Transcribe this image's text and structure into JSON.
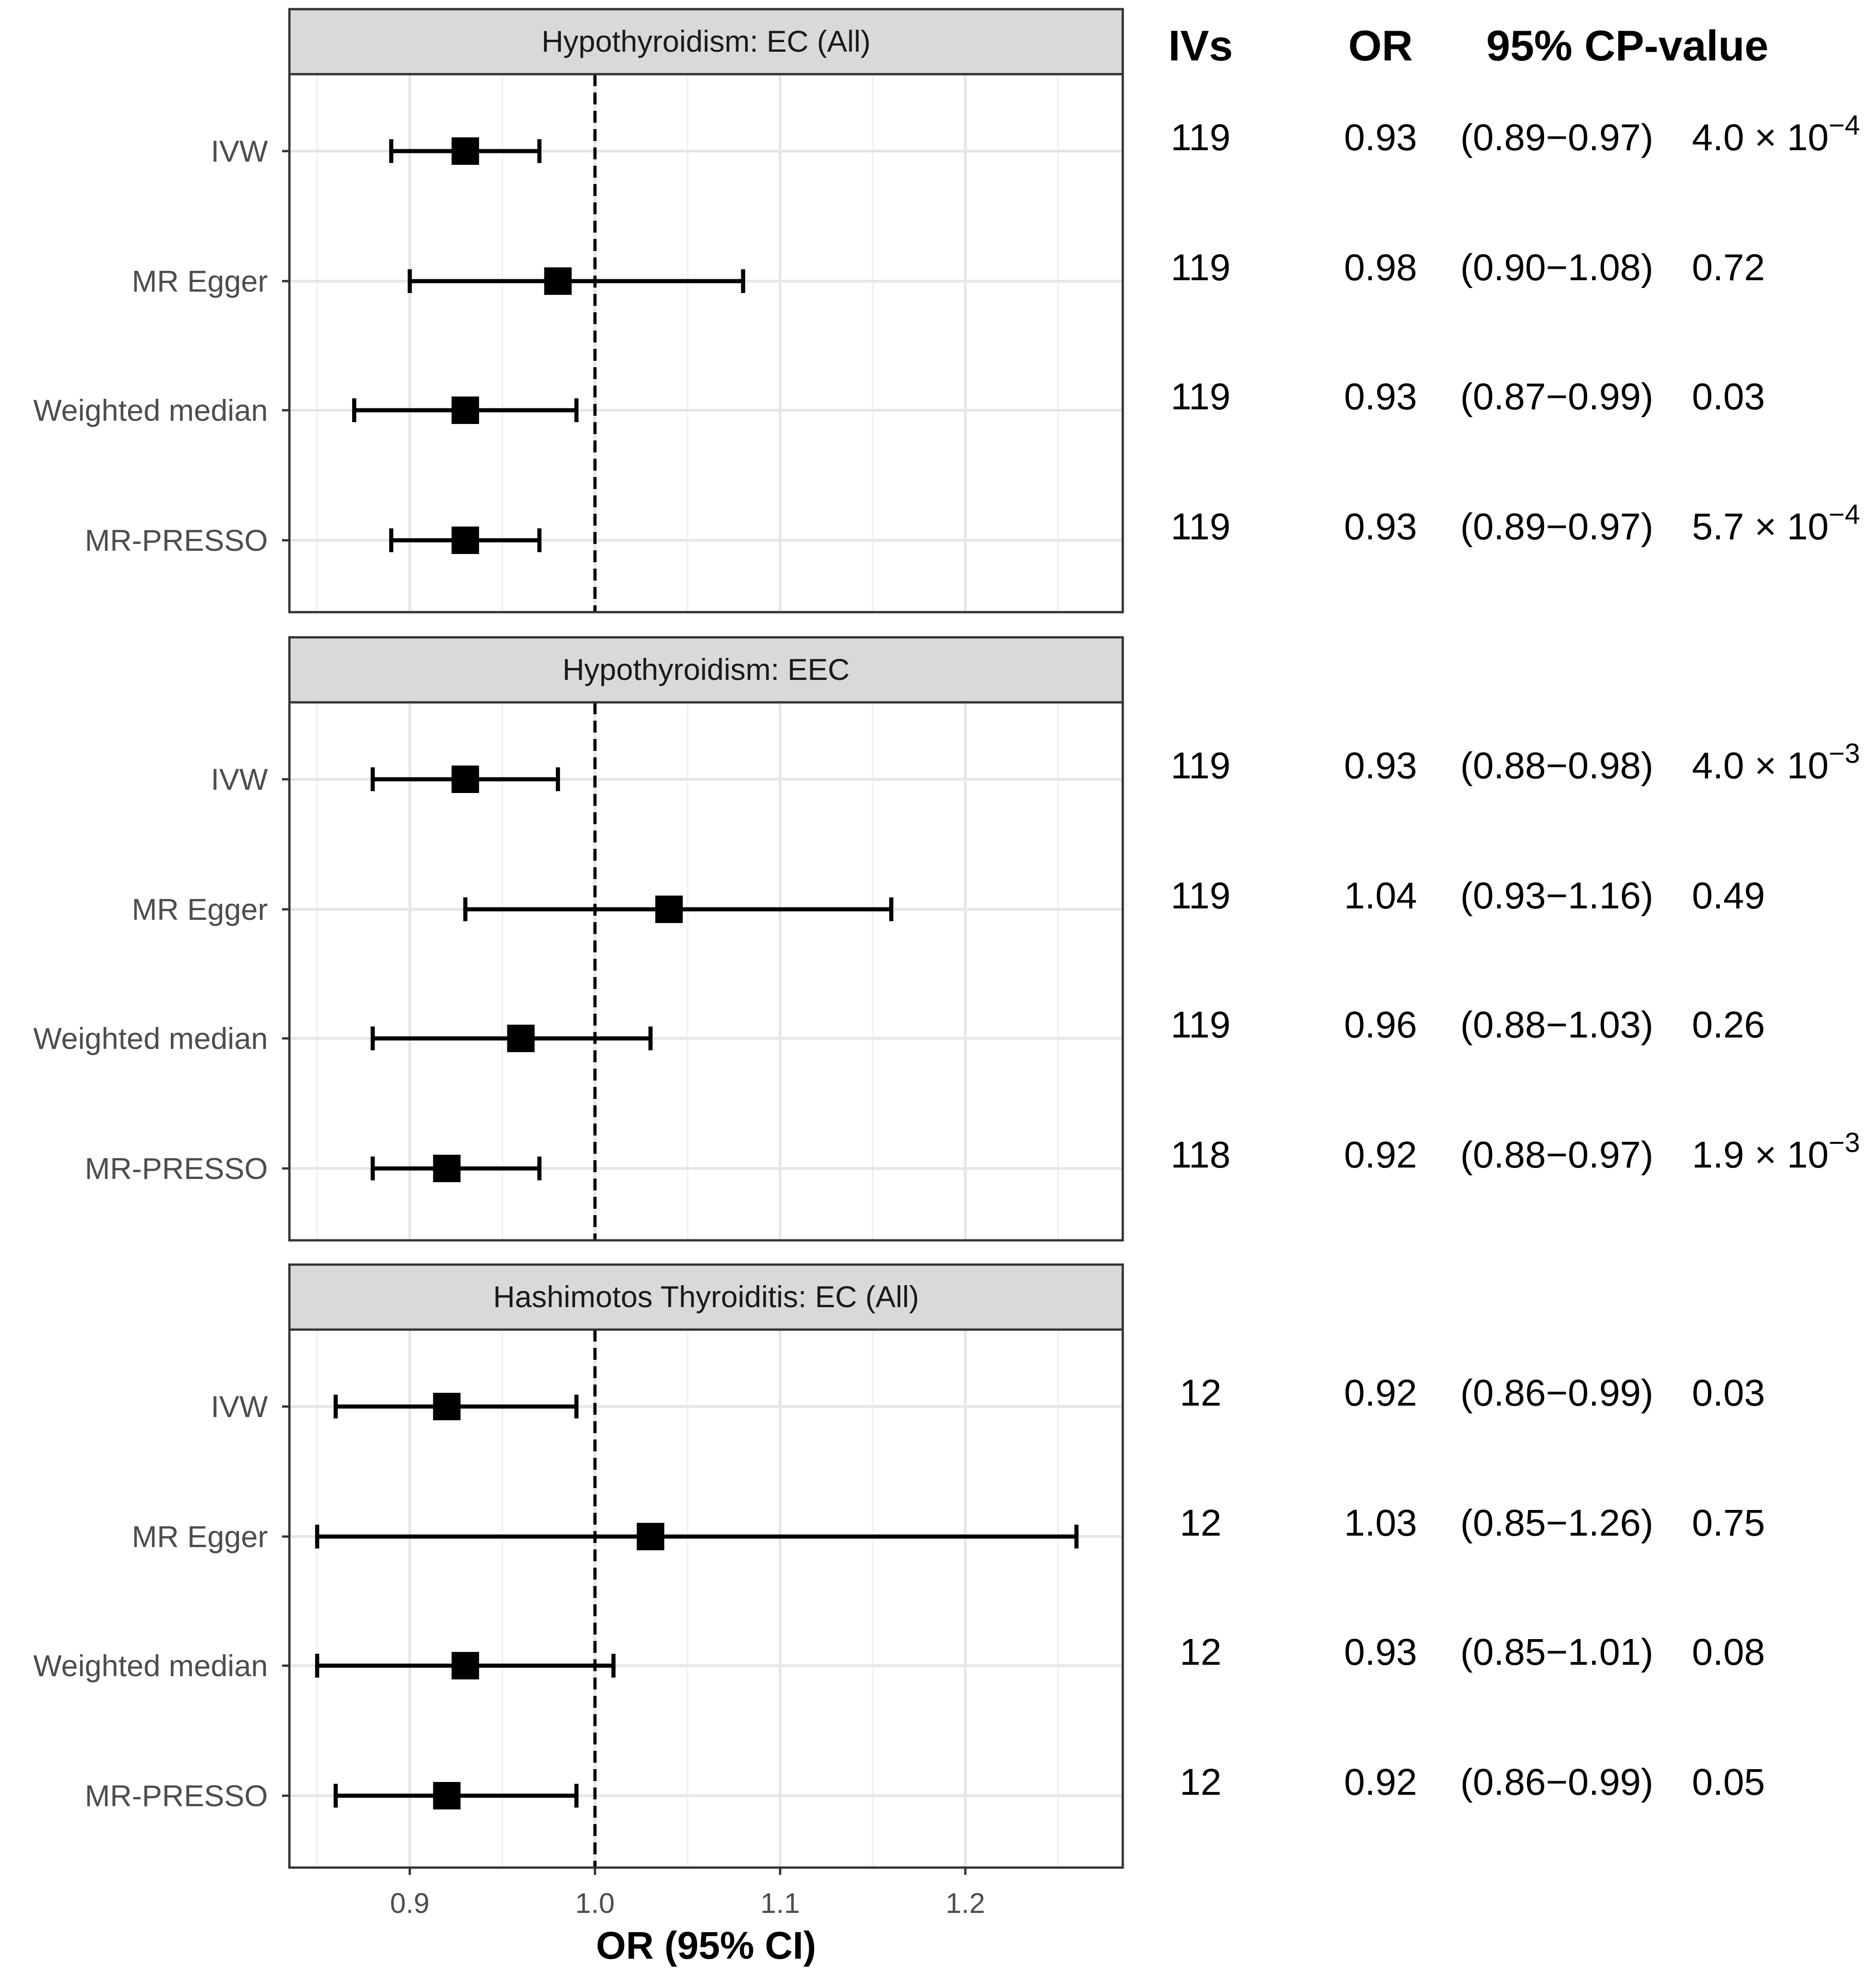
{
  "chart_data": {
    "type": "forest",
    "xlabel": "OR (95% CI)",
    "xlim": [
      0.835,
      1.285
    ],
    "xticks": [
      0.9,
      1.0,
      1.1,
      1.2
    ],
    "xtick_labels": [
      "0.9",
      "1.0",
      "1.1",
      "1.2"
    ],
    "reference_line": 1.0,
    "grid": true,
    "table_headers": [
      "IVs",
      "OR",
      "95% CI",
      "P-value"
    ],
    "methods": [
      "IVW",
      "MR Egger",
      "Weighted median",
      "MR-PRESSO"
    ],
    "panels": [
      {
        "title": "Hypothyroidism: EC (All)",
        "rows": [
          {
            "method": "IVW",
            "or": 0.93,
            "lo": 0.89,
            "hi": 0.97,
            "ivs": "119",
            "or_text": "0.93",
            "ci_text": "(0.89−0.97)",
            "p_base": "4.0 × 10",
            "p_exp": "−4"
          },
          {
            "method": "MR Egger",
            "or": 0.98,
            "lo": 0.9,
            "hi": 1.08,
            "ivs": "119",
            "or_text": "0.98",
            "ci_text": "(0.90−1.08)",
            "p_base": "0.72",
            "p_exp": ""
          },
          {
            "method": "Weighted median",
            "or": 0.93,
            "lo": 0.87,
            "hi": 0.99,
            "ivs": "119",
            "or_text": "0.93",
            "ci_text": "(0.87−0.99)",
            "p_base": "0.03",
            "p_exp": ""
          },
          {
            "method": "MR-PRESSO",
            "or": 0.93,
            "lo": 0.89,
            "hi": 0.97,
            "ivs": "119",
            "or_text": "0.93",
            "ci_text": "(0.89−0.97)",
            "p_base": "5.7 × 10",
            "p_exp": "−4"
          }
        ]
      },
      {
        "title": "Hypothyroidism: EEC",
        "rows": [
          {
            "method": "IVW",
            "or": 0.93,
            "lo": 0.88,
            "hi": 0.98,
            "ivs": "119",
            "or_text": "0.93",
            "ci_text": "(0.88−0.98)",
            "p_base": "4.0 × 10",
            "p_exp": "−3"
          },
          {
            "method": "MR Egger",
            "or": 1.04,
            "lo": 0.93,
            "hi": 1.16,
            "ivs": "119",
            "or_text": "1.04",
            "ci_text": "(0.93−1.16)",
            "p_base": "0.49",
            "p_exp": ""
          },
          {
            "method": "Weighted median",
            "or": 0.96,
            "lo": 0.88,
            "hi": 1.03,
            "ivs": "119",
            "or_text": "0.96",
            "ci_text": "(0.88−1.03)",
            "p_base": "0.26",
            "p_exp": ""
          },
          {
            "method": "MR-PRESSO",
            "or": 0.92,
            "lo": 0.88,
            "hi": 0.97,
            "ivs": "118",
            "or_text": "0.92",
            "ci_text": "(0.88−0.97)",
            "p_base": "1.9 × 10",
            "p_exp": "−3"
          }
        ]
      },
      {
        "title": "Hashimotos Thyroiditis: EC (All)",
        "rows": [
          {
            "method": "IVW",
            "or": 0.92,
            "lo": 0.86,
            "hi": 0.99,
            "ivs": "12",
            "or_text": "0.92",
            "ci_text": "(0.86−0.99)",
            "p_base": "0.03",
            "p_exp": ""
          },
          {
            "method": "MR Egger",
            "or": 1.03,
            "lo": 0.85,
            "hi": 1.26,
            "ivs": "12",
            "or_text": "1.03",
            "ci_text": "(0.85−1.26)",
            "p_base": "0.75",
            "p_exp": ""
          },
          {
            "method": "Weighted median",
            "or": 0.93,
            "lo": 0.85,
            "hi": 1.01,
            "ivs": "12",
            "or_text": "0.93",
            "ci_text": "(0.85−1.01)",
            "p_base": "0.08",
            "p_exp": ""
          },
          {
            "method": "MR-PRESSO",
            "or": 0.92,
            "lo": 0.86,
            "hi": 0.99,
            "ivs": "12",
            "or_text": "0.92",
            "ci_text": "(0.86−0.99)",
            "p_base": "0.05",
            "p_exp": ""
          }
        ]
      }
    ]
  }
}
